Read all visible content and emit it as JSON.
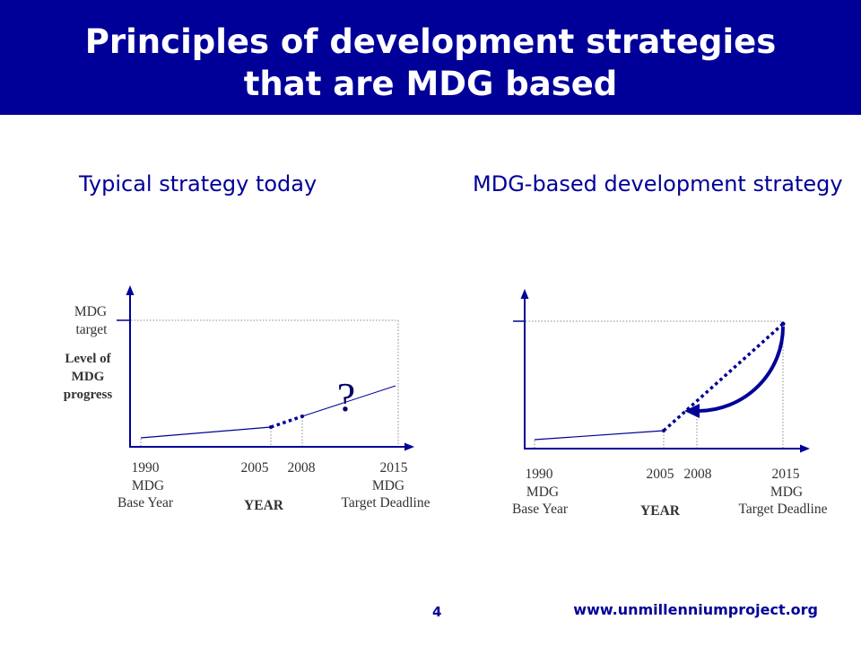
{
  "colors": {
    "brand_blue": "#000099",
    "header_text": "#ffffff",
    "guide_gray": "#8a8a8a",
    "label_text": "#333333"
  },
  "header": {
    "title_lines": [
      "Principles of development strategies",
      "that are MDG based"
    ]
  },
  "panels": {
    "typical": {
      "heading": "Typical strategy today",
      "target_label": [
        "MDG",
        "target"
      ],
      "y_axis_label": [
        "Level of",
        "MDG",
        "progress"
      ],
      "unknown_marker": "?",
      "x_axis_label": "YEAR",
      "ticks": [
        {
          "year": 1990,
          "caption": [
            "MDG",
            "Base Year"
          ]
        },
        {
          "year": 2005
        },
        {
          "year": 2008
        },
        {
          "year": 2015,
          "caption": [
            "MDG",
            "Target Deadline"
          ]
        }
      ]
    },
    "mdg_based": {
      "heading": "MDG-based development strategy",
      "x_axis_label": "YEAR",
      "ticks": [
        {
          "year": 1990,
          "caption": [
            "MDG",
            "Base Year"
          ]
        },
        {
          "year": 2005
        },
        {
          "year": 2008
        },
        {
          "year": 2015,
          "caption": [
            "MDG",
            "Target Deadline"
          ]
        }
      ]
    }
  },
  "footer": {
    "page_number": "4",
    "url": "www.unmillenniumproject.org"
  }
}
